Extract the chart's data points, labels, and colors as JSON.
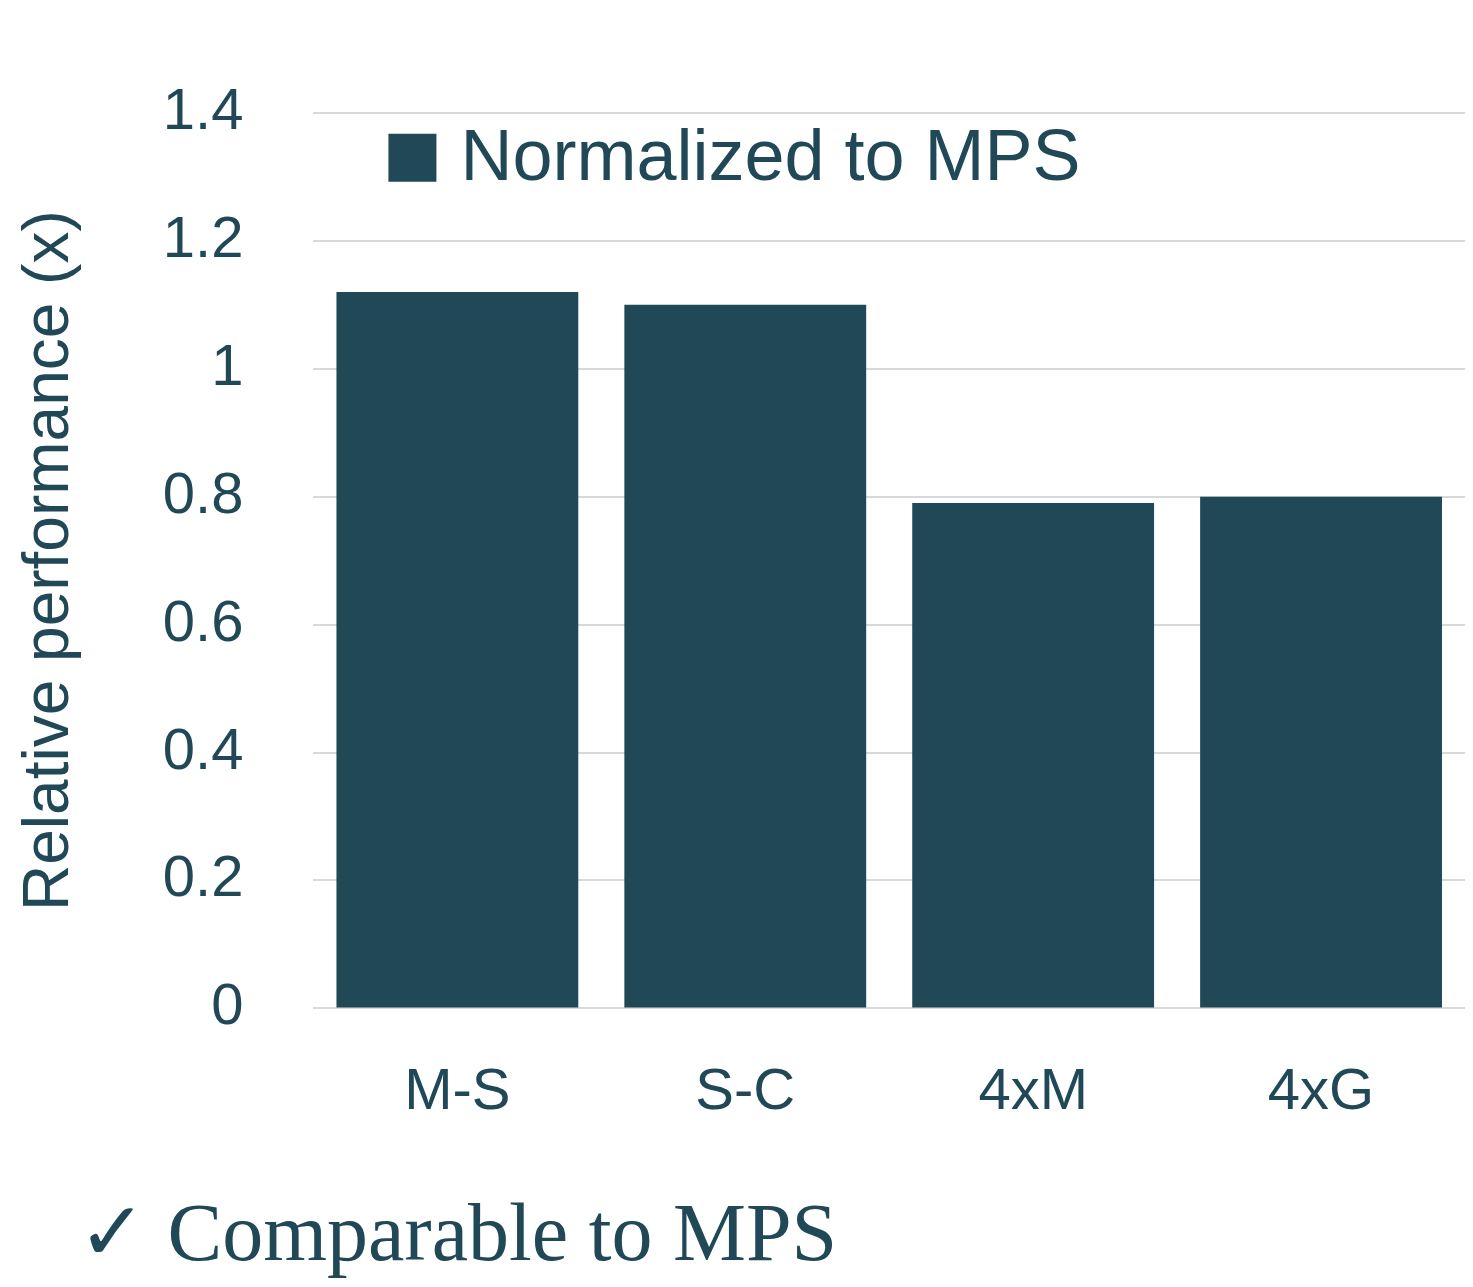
{
  "chart_data": {
    "type": "bar",
    "ylabel": "Relative performance (x)",
    "categories": [
      "M-S",
      "S-C",
      "4xM",
      "4xG"
    ],
    "series": [
      {
        "name": "Normalized to MPS",
        "color": "#204856",
        "values": [
          1.12,
          1.1,
          0.79,
          0.8
        ]
      }
    ],
    "ylim": [
      0,
      1.4
    ],
    "yticks": [
      0,
      0.2,
      0.4,
      0.6,
      0.8,
      1,
      1.2,
      1.4
    ],
    "grid": "y",
    "legend": "top left",
    "annotations": [
      "✓ Comparable to MPS"
    ]
  }
}
